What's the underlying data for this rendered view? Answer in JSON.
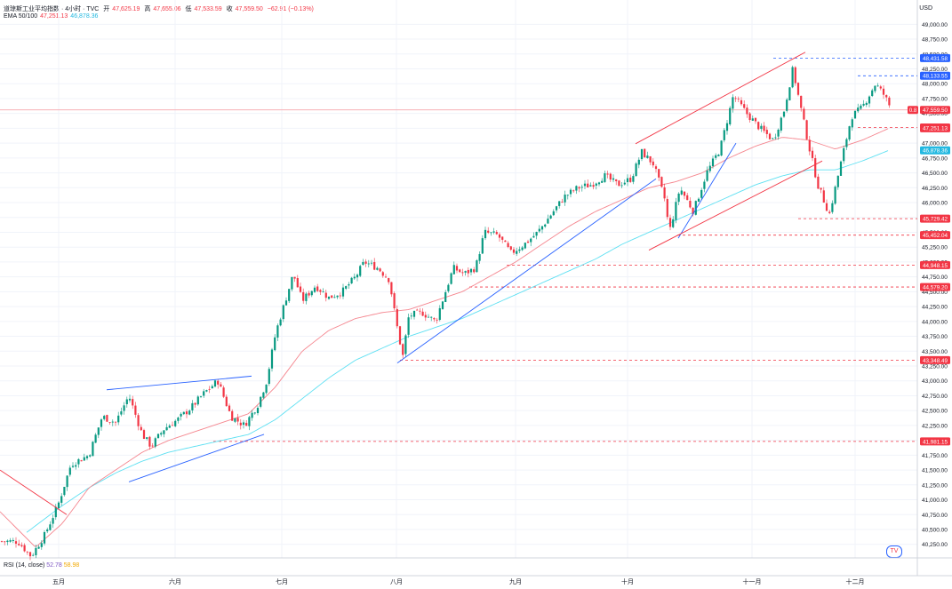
{
  "header": {
    "symbol": "道琼斯工业平均指数 · 4小时 · TVC",
    "open_label": "开",
    "open": "47,625.19",
    "high_label": "高",
    "high": "47,655.06",
    "low_label": "低",
    "low": "47,533.59",
    "close_label": "收",
    "close": "47,559.50",
    "change": "−62.91 (−0.13%)",
    "ema_label": "EMA 50/100",
    "ema50": "47,251.13",
    "ema100": "46,878.36"
  },
  "rsi": {
    "label": "RSI (14, close)",
    "v1": "52.78",
    "v2": "58.98"
  },
  "currency": "USD",
  "logo_text": "TV",
  "chart_data": {
    "type": "candlestick",
    "x_ticks": [
      "五月",
      "六月",
      "七月",
      "八月",
      "九月",
      "十月",
      "十一月",
      "十二月"
    ],
    "y_ticks": [
      "40,250.00",
      "40,500.00",
      "40,750.00",
      "41,000.00",
      "41,250.00",
      "41,500.00",
      "41,750.00",
      "42,000.00",
      "42,250.00",
      "42,500.00",
      "42,750.00",
      "43,000.00",
      "43,250.00",
      "43,500.00",
      "43,750.00",
      "44,000.00",
      "44,250.00",
      "44,500.00",
      "44,750.00",
      "45,000.00",
      "45,250.00",
      "45,500.00",
      "45,750.00",
      "46,000.00",
      "46,250.00",
      "46,500.00",
      "46,750.00",
      "47,000.00",
      "47,250.00",
      "47,500.00",
      "47,750.00",
      "48,000.00",
      "48,250.00",
      "48,500.00",
      "48,750.00",
      "49,000.00"
    ],
    "ylim": [
      40050,
      49150
    ],
    "x_anchors": [
      [
        0,
        40300
      ],
      [
        20,
        40300
      ],
      [
        35,
        40050
      ],
      [
        50,
        40400
      ],
      [
        65,
        40900
      ],
      [
        80,
        41600
      ],
      [
        100,
        41750
      ],
      [
        115,
        42400
      ],
      [
        130,
        42300
      ],
      [
        145,
        42750
      ],
      [
        160,
        42100
      ],
      [
        170,
        41900
      ],
      [
        185,
        42200
      ],
      [
        200,
        42350
      ],
      [
        215,
        42550
      ],
      [
        230,
        42800
      ],
      [
        245,
        43000
      ],
      [
        260,
        42400
      ],
      [
        275,
        42250
      ],
      [
        290,
        42600
      ],
      [
        300,
        43000
      ],
      [
        310,
        43800
      ],
      [
        330,
        44800
      ],
      [
        340,
        44350
      ],
      [
        355,
        44600
      ],
      [
        370,
        44400
      ],
      [
        385,
        44500
      ],
      [
        400,
        44750
      ],
      [
        410,
        45000
      ],
      [
        425,
        44900
      ],
      [
        438,
        44700
      ],
      [
        445,
        44050
      ],
      [
        453,
        43400
      ],
      [
        460,
        44100
      ],
      [
        475,
        44150
      ],
      [
        490,
        44000
      ],
      [
        500,
        44450
      ],
      [
        510,
        44900
      ],
      [
        522,
        44800
      ],
      [
        535,
        44900
      ],
      [
        545,
        45500
      ],
      [
        560,
        45450
      ],
      [
        575,
        45150
      ],
      [
        590,
        45300
      ],
      [
        605,
        45500
      ],
      [
        620,
        45800
      ],
      [
        635,
        46100
      ],
      [
        650,
        46250
      ],
      [
        665,
        46300
      ],
      [
        680,
        46450
      ],
      [
        695,
        46300
      ],
      [
        710,
        46400
      ],
      [
        722,
        46850
      ],
      [
        735,
        46650
      ],
      [
        748,
        46050
      ],
      [
        753,
        45500
      ],
      [
        765,
        46250
      ],
      [
        780,
        45850
      ],
      [
        795,
        46500
      ],
      [
        810,
        46900
      ],
      [
        825,
        47800
      ],
      [
        840,
        47500
      ],
      [
        855,
        47250
      ],
      [
        870,
        47050
      ],
      [
        882,
        47550
      ],
      [
        892,
        48250
      ],
      [
        900,
        47650
      ],
      [
        910,
        46950
      ],
      [
        920,
        46300
      ],
      [
        933,
        45800
      ],
      [
        945,
        46600
      ],
      [
        958,
        47450
      ],
      [
        970,
        47600
      ],
      [
        985,
        48000
      ],
      [
        995,
        47800
      ],
      [
        1003,
        47560
      ]
    ],
    "ema50_anchors": [
      [
        0,
        40800
      ],
      [
        40,
        40200
      ],
      [
        70,
        40600
      ],
      [
        100,
        41200
      ],
      [
        130,
        41500
      ],
      [
        160,
        41800
      ],
      [
        190,
        42000
      ],
      [
        220,
        42150
      ],
      [
        250,
        42300
      ],
      [
        280,
        42450
      ],
      [
        310,
        42900
      ],
      [
        340,
        43500
      ],
      [
        370,
        43850
      ],
      [
        400,
        44050
      ],
      [
        430,
        44150
      ],
      [
        460,
        44200
      ],
      [
        490,
        44350
      ],
      [
        520,
        44500
      ],
      [
        550,
        44750
      ],
      [
        580,
        45000
      ],
      [
        610,
        45300
      ],
      [
        640,
        45600
      ],
      [
        670,
        45850
      ],
      [
        700,
        46050
      ],
      [
        730,
        46250
      ],
      [
        760,
        46350
      ],
      [
        790,
        46500
      ],
      [
        820,
        46750
      ],
      [
        850,
        46950
      ],
      [
        880,
        47100
      ],
      [
        910,
        47050
      ],
      [
        940,
        46900
      ],
      [
        970,
        47050
      ],
      [
        1000,
        47250
      ]
    ],
    "ema100_anchors": [
      [
        30,
        40450
      ],
      [
        70,
        40900
      ],
      [
        100,
        41200
      ],
      [
        130,
        41450
      ],
      [
        160,
        41650
      ],
      [
        190,
        41800
      ],
      [
        220,
        41900
      ],
      [
        250,
        42000
      ],
      [
        280,
        42100
      ],
      [
        310,
        42350
      ],
      [
        340,
        42700
      ],
      [
        370,
        43050
      ],
      [
        400,
        43350
      ],
      [
        430,
        43550
      ],
      [
        460,
        43750
      ],
      [
        490,
        43900
      ],
      [
        520,
        44050
      ],
      [
        550,
        44250
      ],
      [
        580,
        44450
      ],
      [
        610,
        44650
      ],
      [
        640,
        44850
      ],
      [
        670,
        45050
      ],
      [
        700,
        45300
      ],
      [
        730,
        45500
      ],
      [
        760,
        45700
      ],
      [
        790,
        45900
      ],
      [
        820,
        46100
      ],
      [
        850,
        46300
      ],
      [
        880,
        46450
      ],
      [
        910,
        46550
      ],
      [
        940,
        46550
      ],
      [
        970,
        46700
      ],
      [
        1000,
        46880
      ]
    ],
    "trendlines": [
      {
        "color": "#f23645",
        "from": [
          0,
          41500
        ],
        "to": [
          75,
          40750
        ]
      },
      {
        "color": "#2962ff",
        "from": [
          120,
          42850
        ],
        "to": [
          283,
          43080
        ]
      },
      {
        "color": "#2962ff",
        "from": [
          145,
          41300
        ],
        "to": [
          297,
          42100
        ]
      },
      {
        "color": "#2962ff",
        "from": [
          447,
          43300
        ],
        "to": [
          738,
          46400
        ]
      },
      {
        "color": "#2962ff",
        "from": [
          763,
          45400
        ],
        "to": [
          828,
          47000
        ]
      },
      {
        "color": "#f23645",
        "from": [
          715,
          46990
        ],
        "to": [
          906,
          48530
        ]
      },
      {
        "color": "#f23645",
        "from": [
          730,
          45200
        ],
        "to": [
          925,
          46700
        ]
      }
    ],
    "levels": [
      {
        "value": "48,431.58",
        "price": 48431.58,
        "from": 870,
        "color": "#2962ff"
      },
      {
        "value": "48,133.55",
        "price": 48133.55,
        "from": 965,
        "color": "#2962ff"
      },
      {
        "value": "47,263.93",
        "price": 47263.93,
        "from": 965,
        "color": "#f23645"
      },
      {
        "value": "45,729.42",
        "price": 45729.42,
        "from": 898,
        "color": "#f23645"
      },
      {
        "value": "45,452.04",
        "price": 45452.04,
        "from": 762,
        "color": "#f23645"
      },
      {
        "value": "44,948.15",
        "price": 44948.15,
        "from": 570,
        "color": "#f23645"
      },
      {
        "value": "44,579.20",
        "price": 44579.2,
        "from": 528,
        "color": "#f23645"
      },
      {
        "value": "43,348.49",
        "price": 43348.49,
        "from": 450,
        "color": "#f23645"
      },
      {
        "value": "41,981.15",
        "price": 41981.15,
        "from": 240,
        "color": "#f23645"
      }
    ],
    "last_price": {
      "value": "47,559.50",
      "price": 47559.5,
      "tag": "0.8"
    },
    "ema_tags": [
      {
        "value": "47,251.13",
        "price": 47251.13,
        "color": "#f23645"
      },
      {
        "value": "46,878.36",
        "price": 46878.36,
        "color": "#22b8e0"
      }
    ]
  }
}
